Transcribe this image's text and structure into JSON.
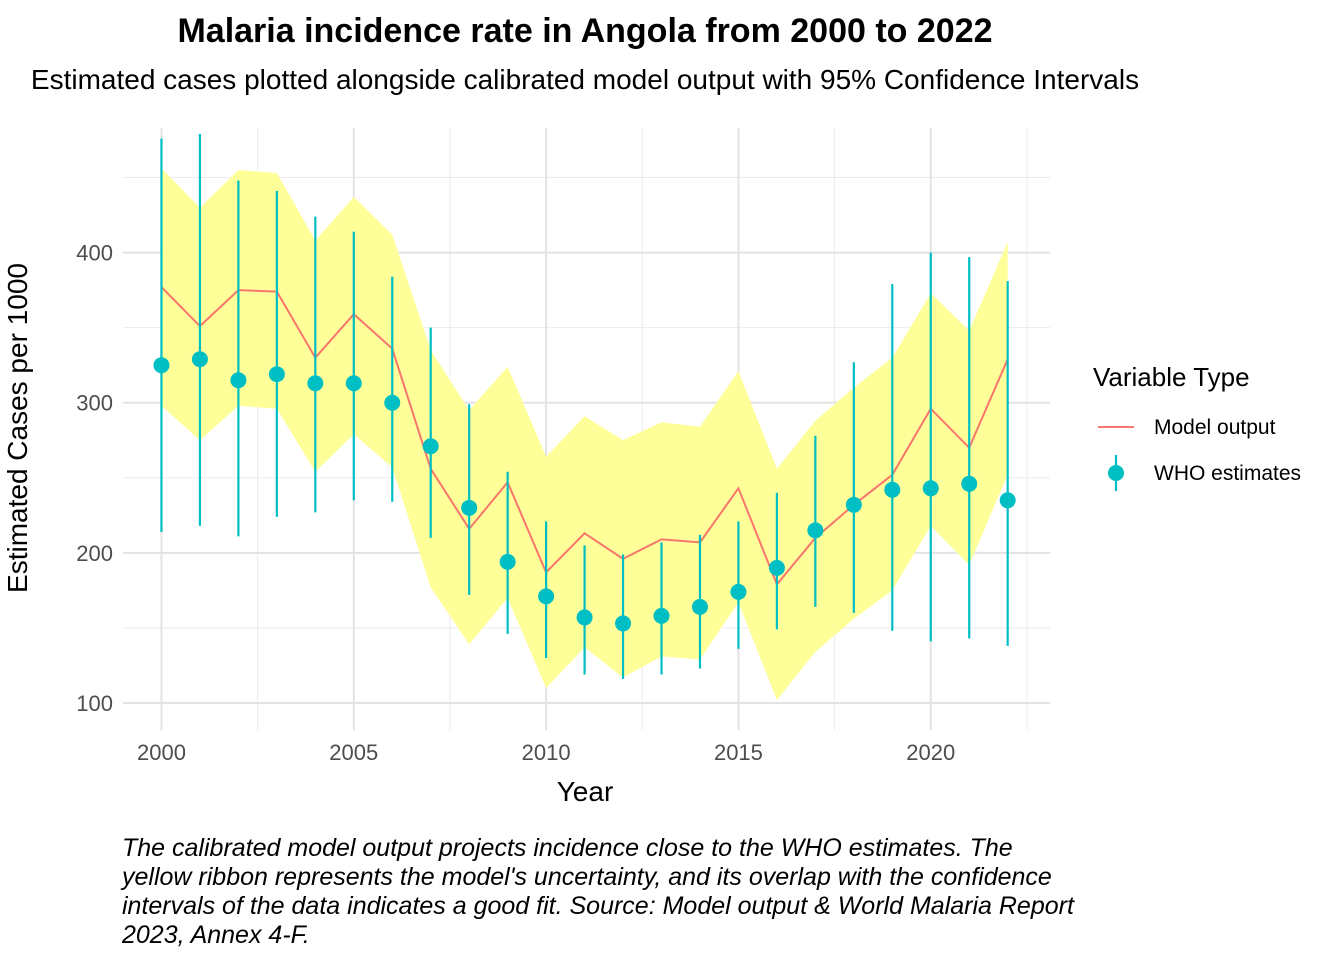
{
  "title": "Malaria incidence rate in Angola from 2000 to 2022",
  "subtitle": "Estimated cases plotted alongside calibrated model output with 95% Confidence Intervals",
  "caption": "The calibrated model output projects incidence close to the WHO estimates. The yellow ribbon represents the model's uncertainty, and its overlap with the confidence intervals of the data indicates a good fit. Source: Model output & World Malaria Report 2023, Annex 4-F.",
  "legend": {
    "title": "Variable Type",
    "items": [
      {
        "label": "Model output",
        "color": "#F8766D",
        "shape": "line"
      },
      {
        "label": "WHO estimates",
        "color": "#00BFC4",
        "shape": "point-range"
      }
    ]
  },
  "chart_data": {
    "type": "line",
    "xlabel": "Year",
    "ylabel": "Estimated Cases per 1000",
    "xlim": [
      1999,
      2023.1
    ],
    "ylim": [
      82,
      483
    ],
    "xticks": [
      2000,
      2005,
      2010,
      2015,
      2020
    ],
    "yticks": [
      100,
      200,
      300,
      400
    ],
    "grid": true,
    "legend_position": "right",
    "ribbon_color": "#FFFF99",
    "x": [
      2000,
      2001,
      2002,
      2003,
      2004,
      2005,
      2006,
      2007,
      2008,
      2009,
      2010,
      2011,
      2012,
      2013,
      2014,
      2015,
      2016,
      2017,
      2018,
      2019,
      2020,
      2021,
      2022
    ],
    "series": [
      {
        "name": "Model output",
        "kind": "line",
        "color": "#F8766D",
        "values": [
          377,
          351,
          375,
          374,
          330,
          359,
          336,
          256,
          216,
          247,
          187,
          213,
          196,
          209,
          207,
          243,
          179,
          210,
          232,
          252,
          296,
          270,
          329
        ],
        "ribbon_lower": [
          298,
          275,
          298,
          296,
          254,
          279,
          257,
          177,
          139,
          170,
          110,
          137,
          117,
          131,
          129,
          167,
          102,
          134,
          156,
          175,
          218,
          192,
          252
        ],
        "ribbon_upper": [
          456,
          430,
          455,
          453,
          408,
          437,
          412,
          335,
          295,
          324,
          264,
          291,
          275,
          287,
          284,
          321,
          256,
          288,
          310,
          330,
          373,
          348,
          407
        ]
      },
      {
        "name": "WHO estimates",
        "kind": "point-range",
        "color": "#00BFC4",
        "values": [
          325,
          329,
          315,
          319,
          313,
          313,
          300,
          271,
          230,
          194,
          171,
          157,
          153,
          158,
          164,
          174,
          190,
          215,
          232,
          242,
          243,
          246,
          235
        ],
        "lower": [
          214,
          218,
          211,
          224,
          227,
          235,
          234,
          210,
          172,
          146,
          130,
          119,
          116,
          119,
          123,
          136,
          149,
          164,
          160,
          148,
          141,
          143,
          138
        ],
        "upper": [
          476,
          479,
          448,
          441,
          424,
          414,
          384,
          350,
          299,
          254,
          221,
          205,
          199,
          207,
          212,
          221,
          240,
          278,
          327,
          379,
          400,
          397,
          381
        ]
      }
    ]
  }
}
